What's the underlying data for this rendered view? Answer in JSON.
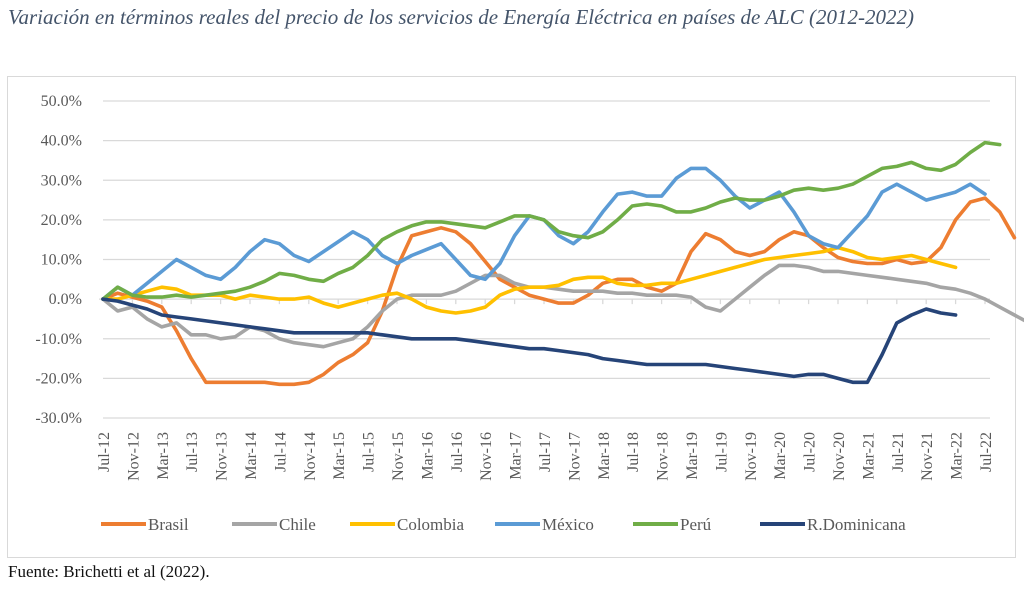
{
  "title": "Variación en términos reales del precio de los servicios de Energía Eléctrica en países de ALC (2012-2022)",
  "source": "Fuente: Brichetti et al (2022).",
  "chart_data": {
    "type": "line",
    "title": "Variación en términos reales del precio de los servicios de Energía Eléctrica en países de ALC (2012-2022)",
    "xlabel": "",
    "ylabel": "",
    "ylim": [
      -30,
      50
    ],
    "yticks": [
      "50.0%",
      "40.0%",
      "30.0%",
      "20.0%",
      "10.0%",
      "0.0%",
      "-10.0%",
      "-20.0%",
      "-30.0%"
    ],
    "ytick_values": [
      50,
      40,
      30,
      20,
      10,
      0,
      -10,
      -20,
      -30
    ],
    "grid": true,
    "legend": "bottom",
    "x_tick_labels": [
      "Jul-12",
      "Nov-12",
      "Mar-13",
      "Jul-13",
      "Nov-13",
      "Mar-14",
      "Jul-14",
      "Nov-14",
      "Mar-15",
      "Jul-15",
      "Nov-15",
      "Mar-16",
      "Jul-16",
      "Nov-16",
      "Mar-17",
      "Jul-17",
      "Nov-17",
      "Mar-18",
      "Jul-18",
      "Nov-18",
      "Mar-19",
      "Jul-19",
      "Nov-19",
      "Mar-20",
      "Jul-20",
      "Nov-20",
      "Mar-21",
      "Jul-21",
      "Nov-21",
      "Mar-22",
      "Jul-22"
    ],
    "x_step_months": 2,
    "x_start": "Jul-12",
    "series": [
      {
        "name": "Brasil",
        "color": "#ed7d31",
        "values": [
          0,
          1.5,
          0.5,
          -0.5,
          -2,
          -8,
          -15,
          -21,
          -21,
          -21,
          -21,
          -21,
          -21.5,
          -21.5,
          -21,
          -19,
          -16,
          -14,
          -11,
          -3,
          8,
          16,
          17,
          18,
          17,
          14,
          9.5,
          5,
          3,
          1,
          0,
          -1,
          -1,
          1,
          4,
          5,
          5,
          3,
          2,
          4,
          12,
          16.5,
          15,
          12,
          11,
          12,
          15,
          17,
          16,
          13,
          10.5,
          9.5,
          9,
          9,
          10,
          9,
          9.5,
          13,
          20,
          24.5,
          25.5,
          22,
          15.5
        ]
      },
      {
        "name": "Chile",
        "color": "#a5a5a5",
        "values": [
          0,
          -3,
          -2,
          -5,
          -7,
          -6,
          -9,
          -9,
          -10,
          -9.5,
          -7,
          -8,
          -10,
          -11,
          -11.5,
          -12,
          -11,
          -10,
          -7,
          -3,
          0,
          1,
          1,
          1,
          2,
          4,
          6,
          6,
          4,
          3,
          3,
          2.5,
          2,
          2,
          2,
          1.5,
          1.5,
          1,
          1,
          1,
          0.5,
          -2,
          -3,
          0,
          3,
          6,
          8.5,
          8.5,
          8,
          7,
          7,
          6.5,
          6,
          5.5,
          5,
          4.5,
          4,
          3,
          2.5,
          1.5,
          0,
          -2,
          -4,
          -6
        ]
      },
      {
        "name": "Colombia",
        "color": "#ffc000",
        "values": [
          0,
          0,
          1,
          2,
          3,
          2.5,
          1,
          1,
          1,
          0,
          1,
          0.5,
          0,
          0,
          0.5,
          -1,
          -2,
          -1,
          0,
          1,
          1.5,
          0,
          -2,
          -3,
          -3.5,
          -3,
          -2,
          1,
          2.5,
          3,
          3,
          3.5,
          5,
          5.5,
          5.5,
          4,
          3.5,
          3.5,
          4,
          4,
          5,
          6,
          7,
          8,
          9,
          10,
          10.5,
          11,
          11.5,
          12,
          13,
          12,
          10.5,
          10,
          10.5,
          11,
          10,
          9,
          8
        ]
      },
      {
        "name": "México",
        "color": "#5b9bd5",
        "values": [
          0,
          3,
          1,
          4,
          7,
          10,
          8,
          6,
          5,
          8,
          12,
          15,
          14,
          11,
          9.5,
          12,
          14.5,
          17,
          15,
          11,
          9,
          11,
          12.5,
          14,
          10,
          6,
          5,
          9,
          16,
          21,
          20,
          16,
          14,
          17,
          22,
          26.5,
          27,
          26,
          26,
          30.5,
          33,
          33,
          30,
          26,
          23,
          25,
          27,
          22,
          16,
          14,
          13,
          17,
          21,
          27,
          29,
          27,
          25,
          26,
          27,
          29,
          26.5
        ]
      },
      {
        "name": "Perú",
        "color": "#70ad47",
        "values": [
          0,
          3,
          1,
          0.5,
          0.5,
          1,
          0.5,
          1,
          1.5,
          2,
          3,
          4.5,
          6.5,
          6,
          5,
          4.5,
          6.5,
          8,
          11,
          15,
          17,
          18.5,
          19.5,
          19.5,
          19,
          18.5,
          18,
          19.5,
          21,
          21,
          20,
          17,
          16,
          15.5,
          17,
          20,
          23.5,
          24,
          23.5,
          22,
          22,
          23,
          24.5,
          25.5,
          25,
          25,
          26,
          27.5,
          28,
          27.5,
          28,
          29,
          31,
          33,
          33.5,
          34.5,
          33,
          32.5,
          34,
          37,
          39.5,
          39
        ]
      },
      {
        "name": "R.Dominicana",
        "color": "#264478",
        "values": [
          0,
          -0.5,
          -1.5,
          -2.5,
          -4,
          -4.5,
          -5,
          -5.5,
          -6,
          -6.5,
          -7,
          -7.5,
          -8,
          -8.5,
          -8.5,
          -8.5,
          -8.5,
          -8.5,
          -8.5,
          -9,
          -9.5,
          -10,
          -10,
          -10,
          -10,
          -10.5,
          -11,
          -11.5,
          -12,
          -12.5,
          -12.5,
          -13,
          -13.5,
          -14,
          -15,
          -15.5,
          -16,
          -16.5,
          -16.5,
          -16.5,
          -16.5,
          -16.5,
          -17,
          -17.5,
          -18,
          -18.5,
          -19,
          -19.5,
          -19,
          -19,
          -20,
          -21,
          -21,
          -14,
          -6,
          -4,
          -2.5,
          -3.5,
          -4
        ]
      }
    ]
  }
}
